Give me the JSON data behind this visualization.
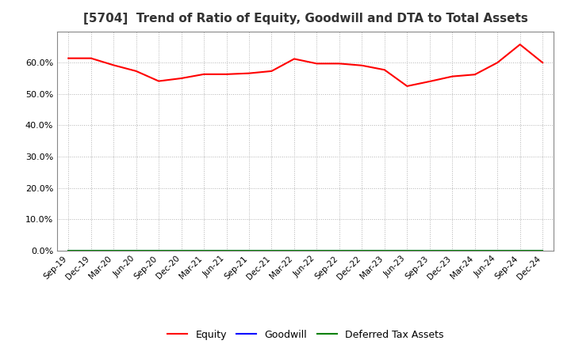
{
  "title": "[5704]  Trend of Ratio of Equity, Goodwill and DTA to Total Assets",
  "x_labels": [
    "Sep-19",
    "Dec-19",
    "Mar-20",
    "Jun-20",
    "Sep-20",
    "Dec-20",
    "Mar-21",
    "Jun-21",
    "Sep-21",
    "Dec-21",
    "Mar-22",
    "Jun-22",
    "Sep-22",
    "Dec-22",
    "Mar-23",
    "Jun-23",
    "Sep-23",
    "Dec-23",
    "Mar-24",
    "Jun-24",
    "Sep-24",
    "Dec-24"
  ],
  "equity": [
    0.614,
    0.614,
    0.592,
    0.573,
    0.541,
    0.55,
    0.563,
    0.563,
    0.566,
    0.573,
    0.612,
    0.597,
    0.597,
    0.591,
    0.577,
    0.525,
    0.54,
    0.556,
    0.562,
    0.6,
    0.658,
    0.6
  ],
  "goodwill": [
    0.0,
    0.0,
    0.0,
    0.0,
    0.0,
    0.0,
    0.0,
    0.0,
    0.0,
    0.0,
    0.0,
    0.0,
    0.0,
    0.0,
    0.0,
    0.0,
    0.0,
    0.0,
    0.0,
    0.0,
    0.0,
    0.0
  ],
  "dta": [
    0.0,
    0.0,
    0.0,
    0.0,
    0.0,
    0.0,
    0.0,
    0.0,
    0.0,
    0.0,
    0.0,
    0.0,
    0.0,
    0.0,
    0.0,
    0.0,
    0.0,
    0.0,
    0.0,
    0.0,
    0.0,
    0.0
  ],
  "equity_color": "#FF0000",
  "goodwill_color": "#0000FF",
  "dta_color": "#008000",
  "ylim": [
    0.0,
    0.7
  ],
  "yticks": [
    0.0,
    0.1,
    0.2,
    0.3,
    0.4,
    0.5,
    0.6
  ],
  "background_color": "#FFFFFF",
  "plot_bg_color": "#FFFFFF",
  "grid_color": "#AAAAAA",
  "title_fontsize": 11,
  "legend_labels": [
    "Equity",
    "Goodwill",
    "Deferred Tax Assets"
  ]
}
